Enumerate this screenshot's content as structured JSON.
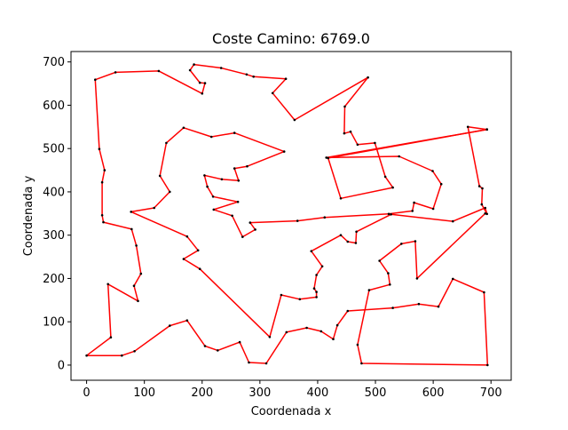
{
  "chart_data": {
    "type": "line",
    "title": "Coste Camino: 6769.0",
    "xlabel": "Coordenada x",
    "ylabel": "Coordenada y",
    "xlim": [
      -27,
      735
    ],
    "ylim": [
      -35,
      724
    ],
    "xticks": [
      0,
      100,
      200,
      300,
      400,
      500,
      600,
      700
    ],
    "yticks": [
      0,
      100,
      200,
      300,
      400,
      500,
      600,
      700
    ],
    "grid": false,
    "legend": "none",
    "series": [
      {
        "color": "#ff0000",
        "marker_color": "#000000",
        "points": [
          [
            693,
            544
          ],
          [
            415,
            479
          ],
          [
            541,
            482
          ],
          [
            599,
            448
          ],
          [
            614,
            418
          ],
          [
            600,
            361
          ],
          [
            567,
            375
          ],
          [
            564,
            356
          ],
          [
            523,
            349
          ],
          [
            412,
            341
          ],
          [
            365,
            333
          ],
          [
            283,
            329
          ],
          [
            292,
            313
          ],
          [
            270,
            296
          ],
          [
            252,
            345
          ],
          [
            220,
            359
          ],
          [
            262,
            377
          ],
          [
            219,
            389
          ],
          [
            209,
            412
          ],
          [
            204,
            438
          ],
          [
            234,
            429
          ],
          [
            263,
            426
          ],
          [
            256,
            454
          ],
          [
            278,
            459
          ],
          [
            342,
            493
          ],
          [
            256,
            536
          ],
          [
            216,
            527
          ],
          [
            168,
            548
          ],
          [
            138,
            513
          ],
          [
            127,
            437
          ],
          [
            144,
            400
          ],
          [
            117,
            363
          ],
          [
            77,
            354
          ],
          [
            174,
            297
          ],
          [
            193,
            265
          ],
          [
            168,
            245
          ],
          [
            196,
            222
          ],
          [
            317,
            65
          ],
          [
            337,
            162
          ],
          [
            369,
            152
          ],
          [
            398,
            157
          ],
          [
            398,
            169
          ],
          [
            394,
            177
          ],
          [
            398,
            208
          ],
          [
            408,
            228
          ],
          [
            389,
            263
          ],
          [
            440,
            300
          ],
          [
            452,
            285
          ],
          [
            466,
            282
          ],
          [
            467,
            308
          ],
          [
            527,
            348
          ],
          [
            634,
            332
          ],
          [
            690,
            363
          ],
          [
            693,
            349
          ],
          [
            684,
            371
          ],
          [
            685,
            408
          ],
          [
            680,
            413
          ],
          [
            660,
            550
          ],
          [
            693,
            544
          ]
        ]
      },
      {
        "color": "#ff0000",
        "marker_color": "#000000",
        "points": [
          [
            693,
            544
          ],
          [
            418,
            478
          ],
          [
            440,
            385
          ],
          [
            530,
            410
          ],
          [
            517,
            435
          ],
          [
            499,
            513
          ],
          [
            469,
            509
          ],
          [
            457,
            539
          ],
          [
            446,
            535
          ],
          [
            447,
            597
          ],
          [
            487,
            664
          ],
          [
            360,
            566
          ],
          [
            322,
            628
          ],
          [
            345,
            661
          ],
          [
            289,
            666
          ],
          [
            277,
            671
          ],
          [
            233,
            686
          ],
          [
            186,
            694
          ],
          [
            179,
            681
          ],
          [
            196,
            652
          ],
          [
            205,
            651
          ],
          [
            200,
            627
          ],
          [
            125,
            679
          ],
          [
            50,
            676
          ],
          [
            15,
            659
          ],
          [
            22,
            499
          ],
          [
            31,
            450
          ],
          [
            27,
            422
          ],
          [
            27,
            346
          ],
          [
            29,
            330
          ],
          [
            78,
            314
          ],
          [
            86,
            276
          ],
          [
            94,
            211
          ],
          [
            82,
            183
          ],
          [
            89,
            148
          ],
          [
            37,
            187
          ],
          [
            42,
            64
          ],
          [
            0,
            22
          ],
          [
            61,
            22
          ],
          [
            83,
            32
          ],
          [
            144,
            91
          ],
          [
            174,
            103
          ],
          [
            205,
            44
          ],
          [
            227,
            34
          ],
          [
            265,
            53
          ],
          [
            281,
            6
          ],
          [
            311,
            4
          ],
          [
            346,
            76
          ],
          [
            381,
            86
          ],
          [
            406,
            78
          ],
          [
            427,
            60
          ],
          [
            434,
            92
          ],
          [
            452,
            125
          ],
          [
            530,
            132
          ],
          [
            575,
            141
          ],
          [
            609,
            135
          ],
          [
            634,
            199
          ],
          [
            688,
            168
          ],
          [
            694,
            0
          ],
          [
            476,
            4
          ],
          [
            469,
            47
          ],
          [
            489,
            173
          ],
          [
            525,
            186
          ],
          [
            522,
            212
          ],
          [
            507,
            241
          ],
          [
            545,
            280
          ],
          [
            569,
            286
          ],
          [
            572,
            200
          ],
          [
            690,
            350
          ]
        ]
      }
    ]
  }
}
